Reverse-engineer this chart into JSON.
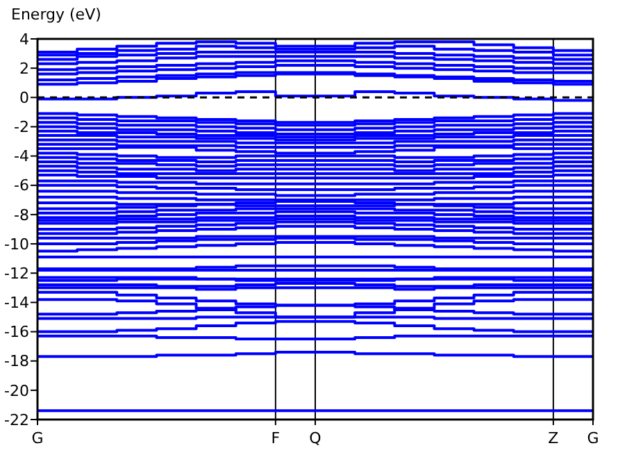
{
  "chart_data": {
    "type": "step",
    "ylabel": "Energy (eV)",
    "categories": [
      "G",
      null,
      null,
      null,
      null,
      null,
      "F",
      "Q",
      null,
      null,
      null,
      null,
      null,
      "Z",
      "G"
    ],
    "ylim": [
      -22,
      4
    ],
    "yticks": [
      -22,
      -20,
      -18,
      -16,
      -14,
      -12,
      -10,
      -8,
      -6,
      -4,
      -2,
      0,
      2,
      4
    ],
    "grid": "x",
    "line_style": "solid",
    "ref_lines": [
      {
        "axis": "y",
        "value": 0,
        "color": "#000000",
        "line_style": "dashed"
      }
    ],
    "series": [
      {
        "color": "#0000ff",
        "values": [
          3.1,
          3.3,
          3.5,
          3.7,
          3.8,
          3.7,
          3.5,
          3.5,
          3.7,
          3.8,
          3.8,
          3.6,
          3.4,
          3.2,
          3.2
        ]
      },
      {
        "color": "#0000ff",
        "values": [
          2.9,
          3.0,
          3.2,
          3.3,
          3.5,
          3.4,
          3.3,
          3.3,
          3.4,
          3.5,
          3.3,
          3.2,
          3.1,
          2.9,
          2.9
        ]
      },
      {
        "color": "#0000ff",
        "values": [
          2.6,
          2.8,
          2.9,
          3.0,
          3.1,
          3.1,
          3.1,
          3.1,
          3.1,
          3.0,
          2.9,
          2.8,
          2.7,
          2.6,
          2.6
        ]
      },
      {
        "color": "#0000ff",
        "values": [
          2.3,
          2.4,
          2.5,
          2.7,
          2.8,
          2.8,
          2.8,
          2.8,
          2.8,
          2.7,
          2.6,
          2.5,
          2.4,
          2.3,
          2.3
        ]
      },
      {
        "color": "#0000ff",
        "values": [
          1.9,
          2.0,
          2.1,
          2.2,
          2.3,
          2.4,
          2.5,
          2.5,
          2.4,
          2.3,
          2.2,
          2.1,
          2.0,
          2.0,
          2.0
        ]
      },
      {
        "color": "#0000ff",
        "values": [
          1.6,
          1.7,
          1.8,
          1.9,
          2.0,
          2.1,
          2.2,
          2.2,
          2.1,
          2.0,
          1.9,
          1.8,
          1.7,
          1.7,
          1.7
        ]
      },
      {
        "color": "#0000ff",
        "values": [
          1.2,
          1.3,
          1.4,
          1.5,
          1.6,
          1.7,
          1.7,
          1.7,
          1.6,
          1.5,
          1.4,
          1.3,
          1.2,
          1.1,
          1.1
        ]
      },
      {
        "color": "#0000ff",
        "values": [
          0.9,
          1.0,
          1.1,
          1.3,
          1.4,
          1.5,
          1.6,
          1.6,
          1.5,
          1.4,
          1.3,
          1.1,
          1.0,
          0.9,
          0.9
        ]
      },
      {
        "color": "#0000ff",
        "values": [
          -0.1,
          -0.1,
          0.0,
          0.1,
          0.3,
          0.4,
          0.1,
          0.1,
          0.4,
          0.3,
          0.1,
          0.0,
          -0.1,
          -0.2,
          -0.2
        ]
      },
      {
        "color": "#0000ff",
        "values": [
          -1.1,
          -1.2,
          -1.3,
          -1.4,
          -1.5,
          -1.6,
          -1.7,
          -1.7,
          -1.6,
          -1.5,
          -1.4,
          -1.3,
          -1.2,
          -1.1,
          -1.1
        ]
      },
      {
        "color": "#0000ff",
        "values": [
          -1.4,
          -1.5,
          -1.6,
          -1.6,
          -1.7,
          -1.8,
          -1.9,
          -1.9,
          -1.8,
          -1.7,
          -1.6,
          -1.6,
          -1.5,
          -1.4,
          -1.4
        ]
      },
      {
        "color": "#0000ff",
        "values": [
          -1.7,
          -1.8,
          -1.9,
          -1.9,
          -2.0,
          -2.1,
          -2.2,
          -2.2,
          -2.1,
          -2.0,
          -1.9,
          -1.9,
          -1.8,
          -1.7,
          -1.7
        ]
      },
      {
        "color": "#0000ff",
        "values": [
          -2.0,
          -2.1,
          -2.2,
          -2.2,
          -2.3,
          -2.4,
          -2.5,
          -2.5,
          -2.4,
          -2.3,
          -2.2,
          -2.2,
          -2.1,
          -2.0,
          -2.0
        ]
      },
      {
        "color": "#0000ff",
        "values": [
          -2.3,
          -2.4,
          -2.4,
          -2.5,
          -2.6,
          -2.6,
          -2.7,
          -2.7,
          -2.6,
          -2.6,
          -2.5,
          -2.4,
          -2.4,
          -2.3,
          -2.3
        ]
      },
      {
        "color": "#0000ff",
        "values": [
          -2.6,
          -2.6,
          -2.7,
          -2.7,
          -2.8,
          -2.8,
          -2.9,
          -2.9,
          -2.8,
          -2.8,
          -2.7,
          -2.7,
          -2.6,
          -2.6,
          -2.6
        ]
      },
      {
        "color": "#0000ff",
        "values": [
          -2.9,
          -2.9,
          -3.0,
          -3.0,
          -3.0,
          -3.1,
          -3.1,
          -3.1,
          -3.1,
          -3.0,
          -3.0,
          -3.0,
          -2.9,
          -2.9,
          -2.9
        ]
      },
      {
        "color": "#0000ff",
        "values": [
          -3.2,
          -3.2,
          -3.3,
          -3.3,
          -3.3,
          -3.4,
          -3.4,
          -3.4,
          -3.4,
          -3.3,
          -3.3,
          -3.3,
          -3.2,
          -3.2,
          -3.2
        ]
      },
      {
        "color": "#0000ff",
        "values": [
          -3.5,
          -3.5,
          -3.4,
          -3.4,
          -3.6,
          -3.7,
          -3.8,
          -3.8,
          -3.7,
          -3.6,
          -3.4,
          -3.4,
          -3.5,
          -3.5,
          -3.5
        ]
      },
      {
        "color": "#0000ff",
        "values": [
          -3.8,
          -3.9,
          -4.0,
          -4.1,
          -4.1,
          -4.0,
          -4.0,
          -4.0,
          -4.0,
          -4.1,
          -4.1,
          -4.0,
          -3.9,
          -3.8,
          -3.8
        ]
      },
      {
        "color": "#0000ff",
        "values": [
          -4.1,
          -4.2,
          -4.3,
          -4.3,
          -4.4,
          -4.3,
          -4.3,
          -4.3,
          -4.3,
          -4.4,
          -4.3,
          -4.3,
          -4.2,
          -4.1,
          -4.1
        ]
      },
      {
        "color": "#0000ff",
        "values": [
          -4.4,
          -4.5,
          -4.5,
          -4.6,
          -4.7,
          -4.6,
          -4.6,
          -4.6,
          -4.6,
          -4.7,
          -4.6,
          -4.5,
          -4.5,
          -4.4,
          -4.4
        ]
      },
      {
        "color": "#0000ff",
        "values": [
          -4.7,
          -4.8,
          -4.9,
          -4.9,
          -5.0,
          -4.9,
          -4.9,
          -4.9,
          -4.9,
          -5.0,
          -4.9,
          -4.9,
          -4.8,
          -4.7,
          -4.7
        ]
      },
      {
        "color": "#0000ff",
        "values": [
          -5.0,
          -5.1,
          -5.2,
          -5.2,
          -5.2,
          -5.2,
          -5.2,
          -5.2,
          -5.2,
          -5.2,
          -5.2,
          -5.2,
          -5.1,
          -5.0,
          -5.0
        ]
      },
      {
        "color": "#0000ff",
        "values": [
          -5.3,
          -5.4,
          -5.4,
          -5.5,
          -5.5,
          -5.5,
          -5.5,
          -5.5,
          -5.5,
          -5.5,
          -5.5,
          -5.4,
          -5.4,
          -5.3,
          -5.3
        ]
      },
      {
        "color": "#0000ff",
        "values": [
          -5.7,
          -5.7,
          -5.8,
          -5.8,
          -5.9,
          -5.9,
          -5.9,
          -5.9,
          -5.9,
          -5.9,
          -5.8,
          -5.8,
          -5.7,
          -5.7,
          -5.7
        ]
      },
      {
        "color": "#0000ff",
        "values": [
          -6.0,
          -6.0,
          -6.1,
          -6.2,
          -6.2,
          -6.3,
          -6.3,
          -6.3,
          -6.3,
          -6.2,
          -6.2,
          -6.1,
          -6.0,
          -6.0,
          -6.0
        ]
      },
      {
        "color": "#0000ff",
        "values": [
          -6.4,
          -6.4,
          -6.5,
          -6.5,
          -6.6,
          -6.6,
          -6.7,
          -6.7,
          -6.6,
          -6.6,
          -6.5,
          -6.5,
          -6.4,
          -6.4,
          -6.4
        ]
      },
      {
        "color": "#0000ff",
        "values": [
          -6.8,
          -6.8,
          -6.9,
          -6.9,
          -7.0,
          -7.0,
          -7.0,
          -7.0,
          -7.0,
          -7.0,
          -6.9,
          -6.9,
          -6.8,
          -6.8,
          -6.8
        ]
      },
      {
        "color": "#0000ff",
        "values": [
          -7.2,
          -7.2,
          -7.3,
          -7.3,
          -7.3,
          -7.4,
          -7.4,
          -7.4,
          -7.4,
          -7.3,
          -7.3,
          -7.3,
          -7.2,
          -7.2,
          -7.2
        ]
      },
      {
        "color": "#0000ff",
        "values": [
          -7.6,
          -7.6,
          -7.5,
          -7.4,
          -7.3,
          -7.2,
          -7.1,
          -7.1,
          -7.2,
          -7.3,
          -7.4,
          -7.5,
          -7.6,
          -7.6,
          -7.6
        ]
      },
      {
        "color": "#0000ff",
        "values": [
          -7.9,
          -7.9,
          -7.8,
          -7.7,
          -7.7,
          -7.6,
          -7.6,
          -7.6,
          -7.6,
          -7.7,
          -7.7,
          -7.8,
          -7.9,
          -7.9,
          -7.9
        ]
      },
      {
        "color": "#0000ff",
        "values": [
          -8.2,
          -8.2,
          -8.1,
          -8.0,
          -7.9,
          -7.9,
          -7.8,
          -7.8,
          -7.9,
          -7.9,
          -8.0,
          -8.1,
          -8.2,
          -8.2,
          -8.2
        ]
      },
      {
        "color": "#0000ff",
        "values": [
          -8.4,
          -8.4,
          -8.3,
          -8.3,
          -8.2,
          -8.2,
          -8.1,
          -8.1,
          -8.2,
          -8.2,
          -8.3,
          -8.3,
          -8.4,
          -8.4,
          -8.4
        ]
      },
      {
        "color": "#0000ff",
        "values": [
          -8.6,
          -8.6,
          -8.5,
          -8.5,
          -8.4,
          -8.4,
          -8.3,
          -8.3,
          -8.4,
          -8.4,
          -8.5,
          -8.5,
          -8.6,
          -8.6,
          -8.6
        ]
      },
      {
        "color": "#0000ff",
        "values": [
          -9.0,
          -9.0,
          -8.9,
          -8.8,
          -8.7,
          -8.6,
          -8.5,
          -8.5,
          -8.6,
          -8.7,
          -8.8,
          -8.9,
          -9.0,
          -9.0,
          -9.0
        ]
      },
      {
        "color": "#0000ff",
        "values": [
          -9.3,
          -9.3,
          -9.2,
          -9.1,
          -9.0,
          -8.9,
          -8.8,
          -8.8,
          -8.9,
          -9.0,
          -9.1,
          -9.2,
          -9.3,
          -9.3,
          -9.3
        ]
      },
      {
        "color": "#0000ff",
        "values": [
          -9.6,
          -9.6,
          -9.6,
          -9.6,
          -9.5,
          -9.5,
          -9.5,
          -9.5,
          -9.5,
          -9.5,
          -9.6,
          -9.6,
          -9.6,
          -9.6,
          -9.6
        ]
      },
      {
        "color": "#0000ff",
        "values": [
          -10.0,
          -10.0,
          -9.9,
          -9.8,
          -9.7,
          -9.7,
          -9.6,
          -9.6,
          -9.7,
          -9.7,
          -9.8,
          -9.9,
          -10.0,
          -10.0,
          -10.0
        ]
      },
      {
        "color": "#0000ff",
        "values": [
          -10.5,
          -10.4,
          -10.3,
          -10.2,
          -10.1,
          -10.0,
          -9.9,
          -9.9,
          -10.0,
          -10.1,
          -10.2,
          -10.3,
          -10.4,
          -10.5,
          -10.5
        ]
      },
      {
        "color": "#0000ff",
        "values": [
          -10.9,
          -10.9,
          -10.9,
          -10.9,
          -10.9,
          -10.9,
          -10.9,
          -10.9,
          -10.9,
          -10.9,
          -10.9,
          -10.9,
          -10.9,
          -10.9,
          -10.9
        ]
      },
      {
        "color": "#0000ff",
        "values": [
          -11.7,
          -11.7,
          -11.7,
          -11.7,
          -11.6,
          -11.5,
          -11.5,
          -11.5,
          -11.5,
          -11.6,
          -11.7,
          -11.7,
          -11.7,
          -11.7,
          -11.7
        ]
      },
      {
        "color": "#0000ff",
        "values": [
          -11.8,
          -11.8,
          -11.8,
          -11.8,
          -11.8,
          -11.8,
          -11.8,
          -11.8,
          -11.8,
          -11.8,
          -11.8,
          -11.8,
          -11.8,
          -11.8,
          -11.8
        ]
      },
      {
        "color": "#0000ff",
        "values": [
          -12.3,
          -12.3,
          -12.3,
          -12.3,
          -12.4,
          -12.4,
          -12.4,
          -12.4,
          -12.4,
          -12.4,
          -12.3,
          -12.3,
          -12.3,
          -12.3,
          -12.3
        ]
      },
      {
        "color": "#0000ff",
        "values": [
          -12.5,
          -12.5,
          -12.4,
          -12.4,
          -12.4,
          -12.5,
          -12.5,
          -12.5,
          -12.5,
          -12.4,
          -12.4,
          -12.4,
          -12.5,
          -12.5,
          -12.5
        ]
      },
      {
        "color": "#0000ff",
        "values": [
          -12.8,
          -12.8,
          -12.8,
          -12.9,
          -12.9,
          -12.8,
          -12.7,
          -12.7,
          -12.8,
          -12.9,
          -12.9,
          -12.8,
          -12.8,
          -12.8,
          -12.8
        ]
      },
      {
        "color": "#0000ff",
        "values": [
          -13.0,
          -13.0,
          -13.0,
          -13.0,
          -13.1,
          -13.0,
          -13.0,
          -13.0,
          -13.0,
          -13.1,
          -13.0,
          -13.0,
          -13.0,
          -13.0,
          -13.0
        ]
      },
      {
        "color": "#0000ff",
        "values": [
          -13.3,
          -13.3,
          -13.5,
          -13.7,
          -13.9,
          -14.1,
          -14.2,
          -14.2,
          -14.1,
          -13.9,
          -13.7,
          -13.5,
          -13.3,
          -13.3,
          -13.3
        ]
      },
      {
        "color": "#0000ff",
        "values": [
          -13.8,
          -13.8,
          -13.9,
          -14.1,
          -14.4,
          -14.7,
          -15.0,
          -15.0,
          -14.7,
          -14.4,
          -14.1,
          -13.9,
          -13.8,
          -13.8,
          -13.8
        ]
      },
      {
        "color": "#0000ff",
        "values": [
          -14.8,
          -14.8,
          -14.7,
          -14.6,
          -14.5,
          -14.3,
          -14.2,
          -14.2,
          -14.3,
          -14.5,
          -14.6,
          -14.7,
          -14.8,
          -14.8,
          -14.8
        ]
      },
      {
        "color": "#0000ff",
        "values": [
          -15.1,
          -15.1,
          -15.1,
          -15.1,
          -15.0,
          -15.0,
          -15.0,
          -15.0,
          -15.0,
          -15.0,
          -15.1,
          -15.1,
          -15.1,
          -15.1,
          -15.1
        ]
      },
      {
        "color": "#0000ff",
        "values": [
          -16.0,
          -16.0,
          -15.9,
          -15.8,
          -15.6,
          -15.4,
          -15.3,
          -15.3,
          -15.4,
          -15.6,
          -15.8,
          -15.9,
          -16.0,
          -16.0,
          -16.0
        ]
      },
      {
        "color": "#0000ff",
        "values": [
          -16.3,
          -16.3,
          -16.3,
          -16.4,
          -16.4,
          -16.5,
          -16.5,
          -16.5,
          -16.4,
          -16.3,
          -16.3,
          -16.3,
          -16.3,
          -16.3,
          -16.3
        ]
      },
      {
        "color": "#0000ff",
        "values": [
          -17.7,
          -17.7,
          -17.7,
          -17.6,
          -17.6,
          -17.5,
          -17.4,
          -17.4,
          -17.5,
          -17.5,
          -17.6,
          -17.6,
          -17.7,
          -17.7,
          -17.7
        ]
      },
      {
        "color": "#0000ff",
        "values": [
          -21.4,
          -21.4,
          -21.4,
          -21.4,
          -21.4,
          -21.4,
          -21.4,
          -21.4,
          -21.4,
          -21.4,
          -21.4,
          -21.4,
          -21.4,
          -21.4,
          -21.4
        ]
      }
    ]
  }
}
